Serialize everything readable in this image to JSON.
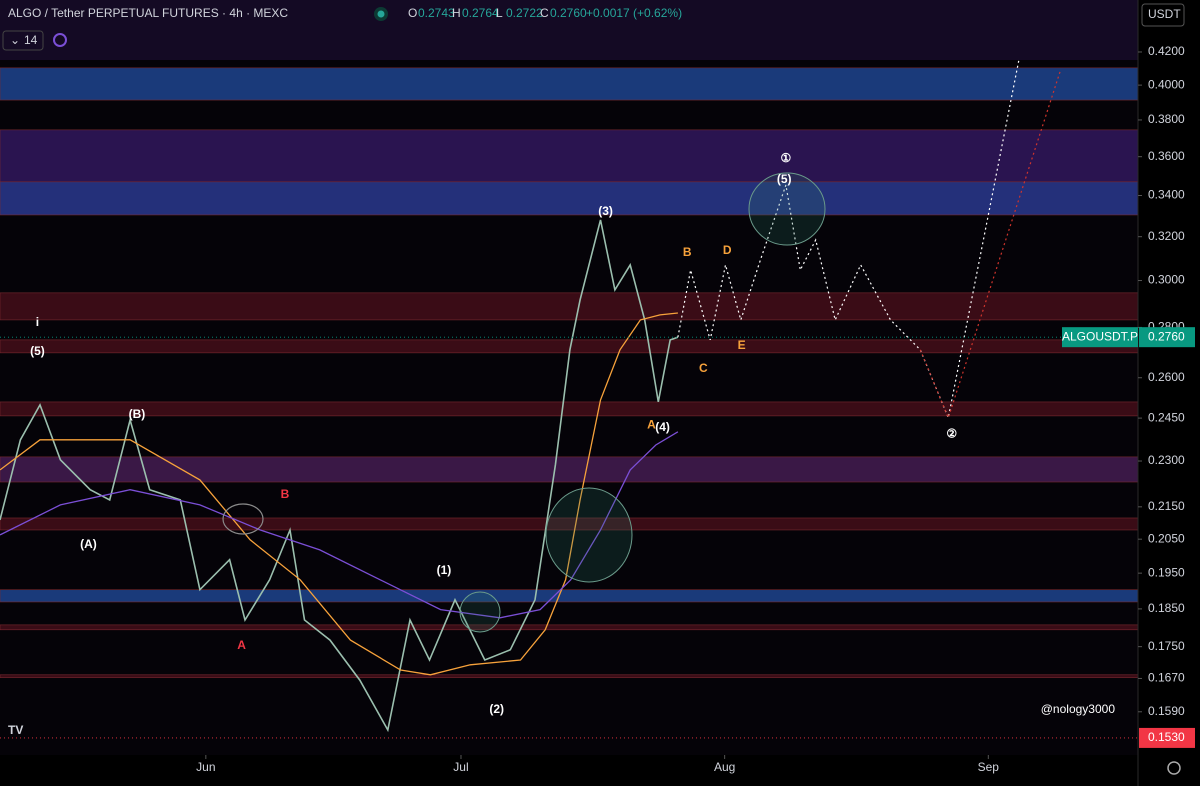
{
  "header": {
    "symbol": "ALGO / Tether PERPETUAL FUTURES · 4h · MEXC",
    "ohlc": [
      {
        "k": "O",
        "v": "0.2743"
      },
      {
        "k": "H",
        "v": "0.2764"
      },
      {
        "k": "L",
        "v": "0.2722"
      },
      {
        "k": "C",
        "v": "0.2760"
      }
    ],
    "change": "+0.0017 (+0.62%)",
    "indicator": "14",
    "currency": "USDT"
  },
  "watermark": "@nology3000",
  "chart_data": {
    "type": "line",
    "log_scale": true,
    "xlim": [
      127.8,
      261.6
    ],
    "ylim": [
      0.1492,
      0.4534
    ],
    "xticks": [
      {
        "value": 152,
        "label": "Jun"
      },
      {
        "value": 182,
        "label": "Jul"
      },
      {
        "value": 213,
        "label": "Aug"
      },
      {
        "value": 244,
        "label": "Sep"
      }
    ],
    "yticks": [
      {
        "value": 0.42,
        "label": "0.4200"
      },
      {
        "value": 0.4,
        "label": "0.4000"
      },
      {
        "value": 0.38,
        "label": "0.3800"
      },
      {
        "value": 0.36,
        "label": "0.3600"
      },
      {
        "value": 0.34,
        "label": "0.3400"
      },
      {
        "value": 0.32,
        "label": "0.3200"
      },
      {
        "value": 0.3,
        "label": "0.3000"
      },
      {
        "value": 0.28,
        "label": "0.2800"
      },
      {
        "value": 0.26,
        "label": "0.2600"
      },
      {
        "value": 0.245,
        "label": "0.2450"
      },
      {
        "value": 0.23,
        "label": "0.2300"
      },
      {
        "value": 0.215,
        "label": "0.2150"
      },
      {
        "value": 0.205,
        "label": "0.2050"
      },
      {
        "value": 0.195,
        "label": "0.1950"
      },
      {
        "value": 0.185,
        "label": "0.1850"
      },
      {
        "value": 0.175,
        "label": "0.1750"
      },
      {
        "value": 0.167,
        "label": "0.1670"
      },
      {
        "value": 0.159,
        "label": "0.1590"
      }
    ],
    "zones": [
      {
        "range": [
          0.3913,
          0.4103
        ],
        "color": "#1a3a7a"
      },
      {
        "range": [
          0.3469,
          0.3745
        ],
        "color": "#2a1450"
      },
      {
        "range": [
          0.3304,
          0.3469
        ],
        "color": "#24307a"
      },
      {
        "range": [
          0.2831,
          0.2946
        ],
        "color": "#3a0c16"
      },
      {
        "range": [
          0.2697,
          0.2749
        ],
        "color": "#3a0c16"
      },
      {
        "range": [
          0.2458,
          0.2509
        ],
        "color": "#3a0c16"
      },
      {
        "range": [
          0.223,
          0.2314
        ],
        "color": "#3a1846"
      },
      {
        "range": [
          0.2078,
          0.2115
        ],
        "color": "#3a0c16"
      },
      {
        "range": [
          0.1869,
          0.1903
        ],
        "color": "#1a3a7a"
      },
      {
        "range": [
          0.1794,
          0.1807
        ],
        "color": "#3a0c16"
      },
      {
        "range": [
          0.1672,
          0.1679
        ],
        "color": "#3a0c16"
      }
    ],
    "series": [
      {
        "color": "#9bbfae",
        "width": 1.6,
        "x": [
          127.8,
          130.2,
          132.5,
          134.9,
          138.4,
          140.7,
          143.1,
          145.4,
          149,
          151.3,
          154.8,
          156.6,
          159.5,
          161.9,
          163.6,
          166.6,
          170.1,
          173.4,
          176,
          178.3,
          181.3,
          184.8,
          187.8,
          190.7,
          193.1,
          194.8,
          196,
          198.4,
          200.1,
          201.9,
          203.6,
          205.2,
          206.6,
          207.5
        ],
        "values": [
          0.2109,
          0.2373,
          0.2498,
          0.2304,
          0.2205,
          0.2172,
          0.2443,
          0.2205,
          0.2172,
          0.1903,
          0.1989,
          0.182,
          0.1931,
          0.2078,
          0.182,
          0.1767,
          0.1666,
          0.1548,
          0.182,
          0.1716,
          0.1875,
          0.1716,
          0.1742,
          0.1875,
          0.2287,
          0.2709,
          0.2916,
          0.328,
          0.2959,
          0.307,
          0.2831,
          0.2509,
          0.2749,
          0.276
        ]
      },
      {
        "color": "#f7a23b",
        "width": 1.3,
        "x": [
          127.8,
          132.5,
          137.2,
          143.1,
          151.3,
          157.2,
          163.1,
          169,
          174.9,
          178.4,
          183.1,
          189,
          191.9,
          194.3,
          196,
          198.4,
          200.7,
          203.1,
          205.4,
          207.5
        ],
        "values": [
          0.227,
          0.2373,
          0.2373,
          0.2373,
          0.2237,
          0.2048,
          0.1931,
          0.1767,
          0.1691,
          0.1679,
          0.1704,
          0.1716,
          0.1794,
          0.1931,
          0.2172,
          0.2516,
          0.2709,
          0.2831,
          0.2852,
          0.286
        ]
      },
      {
        "color": "#7b4fd6",
        "width": 1.3,
        "x": [
          127.8,
          134.9,
          143.1,
          151.3,
          158.4,
          165.4,
          172.5,
          179.6,
          186.6,
          191.3,
          194.9,
          198.4,
          201.9,
          204.9,
          207.5
        ],
        "values": [
          0.2063,
          0.2156,
          0.2205,
          0.2156,
          0.2078,
          0.2018,
          0.1931,
          0.1848,
          0.1826,
          0.1848,
          0.1931,
          0.2078,
          0.227,
          0.2355,
          0.2401
        ]
      },
      {
        "color": "#ffffff",
        "width": 1.2,
        "dotted": true,
        "x": [
          207.5,
          209,
          211.3,
          213.1,
          214.9,
          217.2,
          220.2,
          221.9,
          223.7,
          226,
          229,
          232.5,
          236,
          239.3,
          247.6
        ],
        "values": [
          0.276,
          0.3047,
          0.2749,
          0.307,
          0.2831,
          0.3092,
          0.3453,
          0.3047,
          0.3185,
          0.2831,
          0.307,
          0.2831,
          0.2709,
          0.2451,
          0.4151
        ]
      },
      {
        "color": "#d0342c",
        "width": 1.2,
        "dotted": true,
        "x": [
          236,
          239.3,
          252.5
        ],
        "values": [
          0.2709,
          0.2451,
          0.409
        ]
      }
    ],
    "annotations": [
      {
        "text": "i",
        "x": 132.2,
        "y": 0.2818,
        "color": "#ffffff"
      },
      {
        "text": "(5)",
        "x": 132.2,
        "y": 0.2702,
        "color": "#ffffff"
      },
      {
        "text": "(B)",
        "x": 143.9,
        "y": 0.2462,
        "color": "#ffffff"
      },
      {
        "text": "(A)",
        "x": 138.2,
        "y": 0.2033,
        "color": "#ffffff"
      },
      {
        "text": "B",
        "x": 161.3,
        "y": 0.2188,
        "color": "#f23645"
      },
      {
        "text": "A",
        "x": 156.2,
        "y": 0.1752,
        "color": "#f23645"
      },
      {
        "text": "(1)",
        "x": 180,
        "y": 0.1957,
        "color": "#ffffff"
      },
      {
        "text": "(2)",
        "x": 186.2,
        "y": 0.1595,
        "color": "#ffffff"
      },
      {
        "text": "(3)",
        "x": 199,
        "y": 0.3319,
        "color": "#ffffff"
      },
      {
        "text": "(4)",
        "x": 205.7,
        "y": 0.2415,
        "color": "#ffffff"
      },
      {
        "text": "A",
        "x": 204.4,
        "y": 0.2424,
        "color": "#f7a23b"
      },
      {
        "text": "B",
        "x": 208.6,
        "y": 0.3125,
        "color": "#f7a23b"
      },
      {
        "text": "C",
        "x": 210.5,
        "y": 0.2634,
        "color": "#f7a23b"
      },
      {
        "text": "D",
        "x": 213.3,
        "y": 0.3134,
        "color": "#f7a23b"
      },
      {
        "text": "E",
        "x": 215,
        "y": 0.2725,
        "color": "#f7a23b"
      },
      {
        "text": "①",
        "x": 220.2,
        "y": 0.3588,
        "color": "#ffffff"
      },
      {
        "text": "(5)",
        "x": 220,
        "y": 0.3479,
        "color": "#ffffff"
      },
      {
        "text": "②",
        "x": 239.7,
        "y": 0.2393,
        "color": "#ffffff"
      }
    ],
    "tags": [
      {
        "name": "ALGOUSDT.P",
        "value": 0.276,
        "label": "0.2760",
        "color": "#089981"
      },
      {
        "value": 0.153,
        "label": "0.1530",
        "color": "#f23645"
      }
    ]
  }
}
